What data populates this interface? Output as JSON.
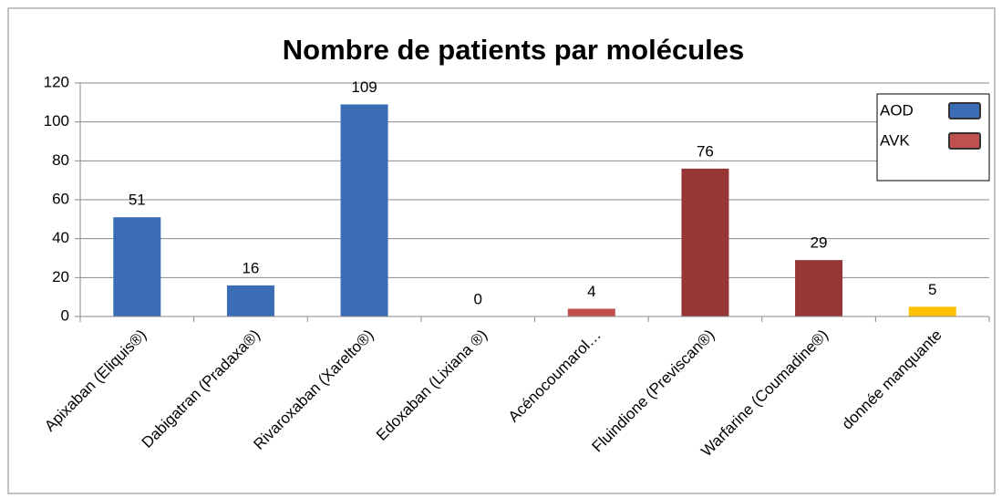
{
  "chart_data": {
    "type": "bar",
    "title": "Nombre de patients par molécules",
    "categories": [
      "Apixaban (Eliquis®)",
      "Dabigatran (Pradaxa®)",
      "Rivaroxaban (Xarelto®)",
      "Edoxaban (Lixiana ®)",
      "Acénocoumarol…",
      "Fluindione (Previscan®)",
      "Warfarine (Coumadine®)",
      "donnée manquante"
    ],
    "values": [
      51,
      16,
      109,
      0,
      4,
      76,
      29,
      5
    ],
    "colors": [
      "#3a6db5",
      "#3a6db5",
      "#3a6db5",
      "#3a6db5",
      "#c0504d",
      "#953735",
      "#953735",
      "#ffc000"
    ],
    "legend": [
      {
        "name": "AOD",
        "color": "#3a6db5"
      },
      {
        "name": "AVK",
        "color": "#c0504d"
      }
    ],
    "ylim": [
      0,
      120
    ],
    "yticks": [
      0,
      20,
      40,
      60,
      80,
      100,
      120
    ],
    "grid": true
  }
}
